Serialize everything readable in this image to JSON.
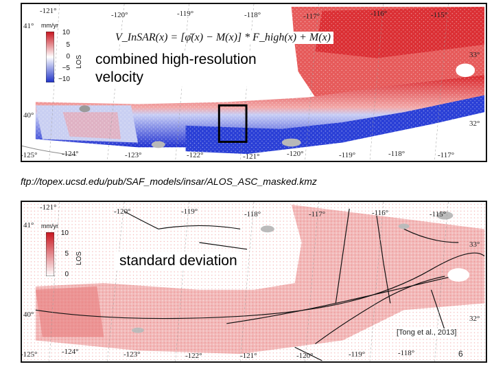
{
  "top_map": {
    "formula": "V_InSAR(x) = [φ̄(x) − M(x)] * F_high(x) + M(x)",
    "caption_line1": "combined high-resolution",
    "caption_line2": "velocity",
    "colorbar": {
      "unit": "mm/yr",
      "axis_label": "LOS",
      "labels": [
        "10",
        "5",
        "0",
        "−5",
        "−10"
      ],
      "colors": [
        "#c8141e",
        "#ffffff",
        "#1e32c8"
      ]
    },
    "lon_ticks_top": [
      "-121°",
      "-120°",
      "-119°",
      "-118°",
      "-117°",
      "-116°",
      "-115°"
    ],
    "lon_ticks_bottom": [
      "-124°",
      "-123°",
      "-122°",
      "-121°",
      "-120°",
      "-119°",
      "-118°",
      "-117°"
    ],
    "lat_ticks_left": [
      "41°",
      "40°"
    ],
    "lat_ticks_right": [
      "33°",
      "32°"
    ],
    "corner_tick": "-125°"
  },
  "url": "ftp://topex.ucsd.edu/pub/SAF_models/insar/ALOS_ASC_masked.kmz",
  "bottom_map": {
    "caption": "standard deviation",
    "colorbar": {
      "unit": "mm/yr",
      "axis_label": "LOS",
      "labels": [
        "10",
        "5",
        "0"
      ],
      "colors": [
        "#c8141e",
        "#ffffff"
      ]
    },
    "lon_ticks_top": [
      "-121°",
      "-120°",
      "-119°",
      "-118°",
      "-117°",
      "-116°",
      "-115°"
    ],
    "lon_ticks_bottom": [
      "-124°",
      "-123°",
      "-122°",
      "-121°",
      "-120°",
      "-119°",
      "-118°"
    ],
    "lat_ticks_left": [
      "41°",
      "40°"
    ],
    "lat_ticks_right": [
      "33°",
      "32°"
    ],
    "corner_tick": "-125°"
  },
  "citation": "[Tong et al., 2013]",
  "slide_number": "6",
  "colors": {
    "red": "#e03a3a",
    "blue": "#2a3fd6",
    "land": "#f2b9b9"
  }
}
